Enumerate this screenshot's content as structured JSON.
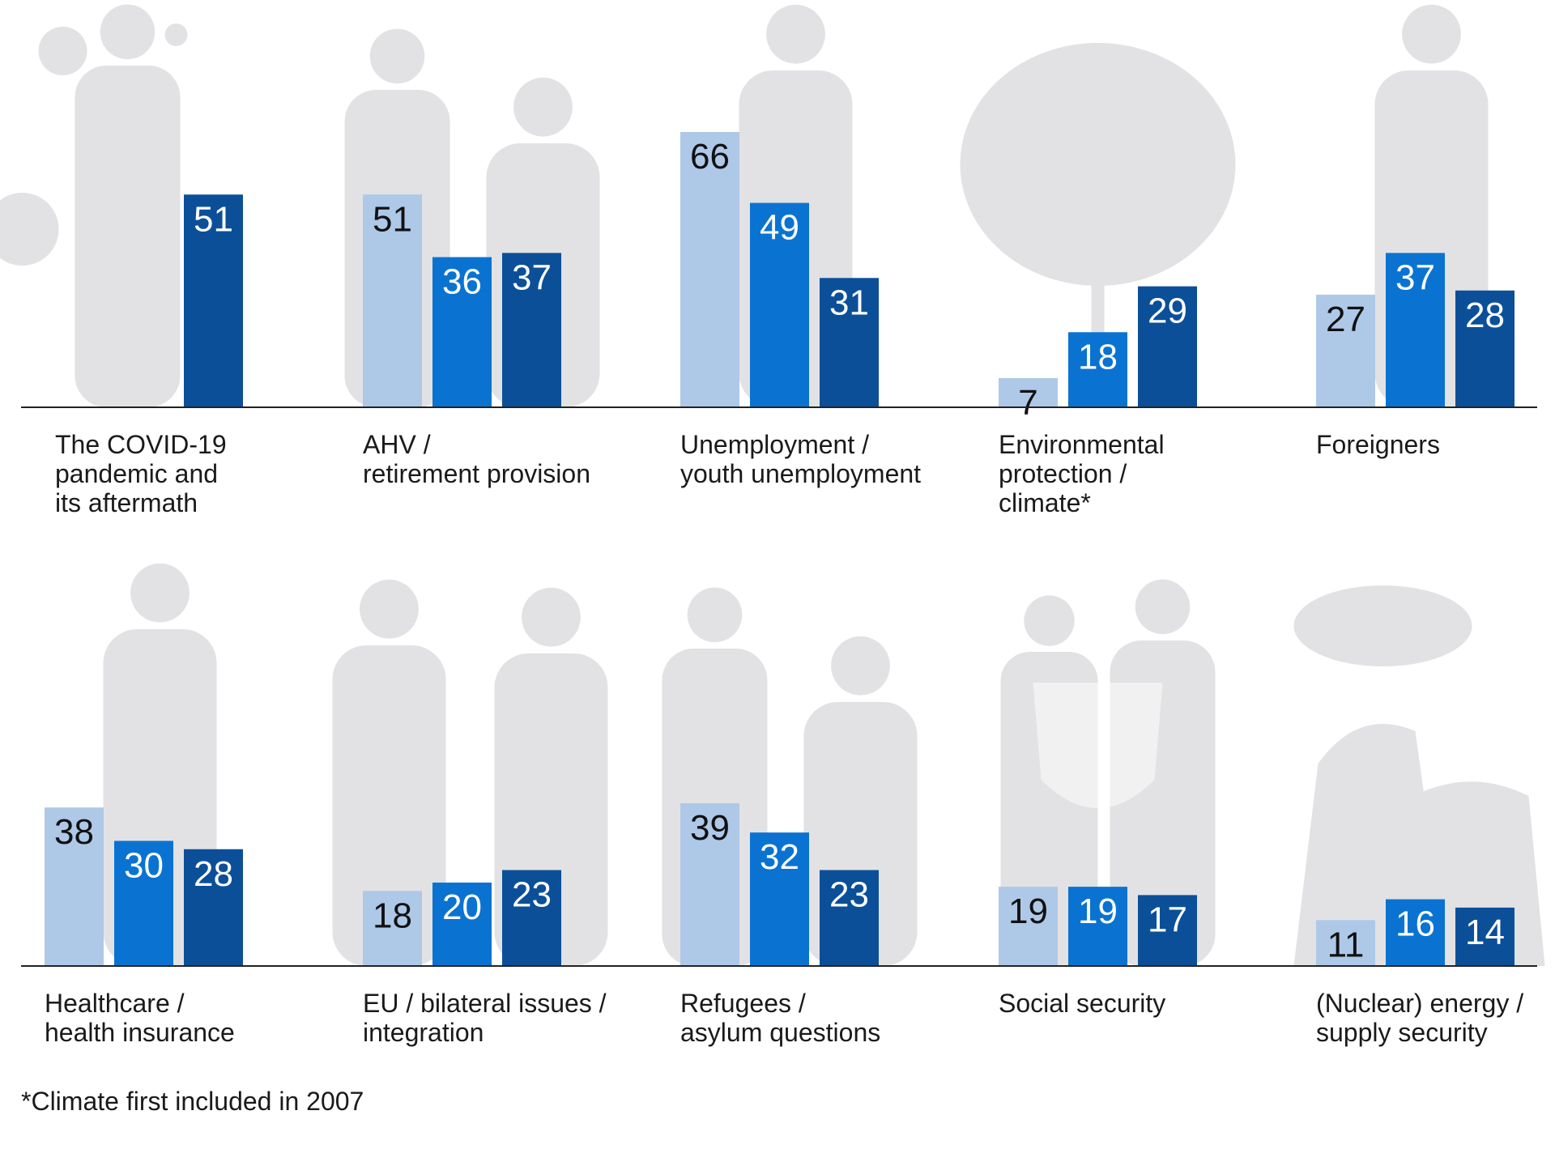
{
  "chart_data": {
    "type": "bar",
    "series_colors": [
      "#aec8e8",
      "#0a73d2",
      "#0b4f99"
    ],
    "value_text_colors": [
      "#111111",
      "#ffffff",
      "#ffffff"
    ],
    "panels": [
      {
        "label": [
          "The COVID-19",
          "pandemic and",
          "its aftermath"
        ],
        "values": [
          null,
          null,
          51
        ],
        "icon": "doctor-mask-virus-icon"
      },
      {
        "label": [
          "AHV /",
          "retirement provision"
        ],
        "values": [
          51,
          36,
          37
        ],
        "icon": "elderly-couple-icon"
      },
      {
        "label": [
          "Unemployment /",
          "youth unemployment"
        ],
        "values": [
          66,
          49,
          31
        ],
        "icon": "sad-man-icon"
      },
      {
        "label": [
          "Environmental",
          "protection /",
          "climate*"
        ],
        "values": [
          7,
          18,
          29
        ],
        "icon": "tree-icon"
      },
      {
        "label": [
          "Foreigners"
        ],
        "values": [
          27,
          37,
          28
        ],
        "icon": "traveler-suitcase-icon"
      },
      {
        "label": [
          "Healthcare /",
          "health insurance"
        ],
        "values": [
          38,
          30,
          28
        ],
        "icon": "doctor-stethoscope-icon"
      },
      {
        "label": [
          "EU / bilateral issues /",
          "integration"
        ],
        "values": [
          18,
          20,
          23
        ],
        "icon": "handshake-icon"
      },
      {
        "label": [
          "Refugees /",
          "asylum questions"
        ],
        "values": [
          39,
          32,
          23
        ],
        "icon": "refugee-family-icon"
      },
      {
        "label": [
          "Social security"
        ],
        "values": [
          19,
          19,
          17
        ],
        "icon": "couple-shield-lock-icon"
      },
      {
        "label": [
          "(Nuclear) energy /",
          "supply security"
        ],
        "values": [
          11,
          16,
          14
        ],
        "icon": "nuclear-plant-icon"
      }
    ],
    "ylim": [
      0,
      70
    ]
  },
  "footnote": "*Climate first included in 2007"
}
